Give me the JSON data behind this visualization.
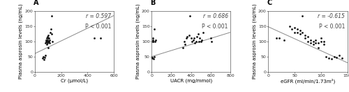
{
  "panel_A": {
    "label": "A",
    "x_data": [
      60,
      65,
      70,
      75,
      80,
      80,
      85,
      85,
      90,
      90,
      90,
      95,
      95,
      95,
      100,
      100,
      100,
      100,
      105,
      105,
      110,
      110,
      115,
      120,
      125,
      130,
      135,
      450,
      500
    ],
    "y_data": [
      45,
      50,
      40,
      48,
      55,
      95,
      100,
      105,
      90,
      100,
      110,
      95,
      105,
      115,
      80,
      100,
      110,
      120,
      100,
      110,
      95,
      105,
      130,
      140,
      125,
      185,
      100,
      110,
      110
    ],
    "xlabel": "Cr (μmol/L)",
    "ylabel": "Plasma asprosin levels (ng/mL)",
    "xlim": [
      0,
      600
    ],
    "ylim": [
      0,
      200
    ],
    "xticks": [
      0,
      200,
      400,
      600
    ],
    "yticks": [
      0,
      50,
      100,
      150,
      200
    ],
    "r_text": "r = 0.597",
    "p_text": "P < 0.001",
    "line_x": [
      0,
      600
    ],
    "line_y": [
      60,
      185
    ]
  },
  "panel_B": {
    "label": "B",
    "x_data": [
      5,
      8,
      10,
      12,
      15,
      15,
      20,
      25,
      30,
      35,
      40,
      320,
      330,
      340,
      350,
      360,
      380,
      390,
      400,
      410,
      420,
      430,
      440,
      450,
      460,
      470,
      480,
      490,
      500,
      510,
      520,
      600,
      610
    ],
    "y_data": [
      45,
      48,
      100,
      100,
      105,
      110,
      42,
      140,
      50,
      100,
      105,
      80,
      100,
      90,
      110,
      115,
      120,
      185,
      110,
      100,
      105,
      110,
      95,
      100,
      115,
      125,
      100,
      110,
      100,
      105,
      130,
      110,
      100
    ],
    "xlabel": "UACR (mg/mmol)",
    "ylabel": "Plasma asprosin levels (ng/mL)",
    "xlim": [
      0,
      800
    ],
    "ylim": [
      0,
      200
    ],
    "xticks": [
      0,
      200,
      400,
      600,
      800
    ],
    "yticks": [
      0,
      50,
      100,
      150,
      200
    ],
    "r_text": "r = 0.686",
    "p_text": "P < 0.001",
    "line_x": [
      0,
      800
    ],
    "line_y": [
      50,
      130
    ]
  },
  "panel_C": {
    "label": "C",
    "x_data": [
      15,
      20,
      30,
      40,
      45,
      50,
      50,
      55,
      55,
      60,
      60,
      65,
      65,
      70,
      70,
      75,
      75,
      80,
      80,
      85,
      85,
      90,
      90,
      95,
      95,
      100,
      100,
      105,
      105,
      110,
      115,
      120,
      125,
      130,
      135,
      140
    ],
    "y_data": [
      110,
      110,
      105,
      150,
      140,
      130,
      145,
      130,
      140,
      125,
      135,
      185,
      130,
      120,
      110,
      100,
      115,
      95,
      105,
      90,
      100,
      95,
      105,
      80,
      95,
      100,
      110,
      90,
      100,
      50,
      45,
      42,
      50,
      48,
      55,
      45
    ],
    "xlabel": "eGFR (ml/min/1.73m²)",
    "ylabel": "Plasma asprosin levels (ng/mL)",
    "xlim": [
      0,
      150
    ],
    "ylim": [
      0,
      200
    ],
    "xticks": [
      0,
      50,
      100,
      150
    ],
    "yticks": [
      0,
      50,
      100,
      150,
      200
    ],
    "r_text": "r = -0.615",
    "p_text": "P < 0.001",
    "line_x": [
      0,
      150
    ],
    "line_y": [
      148,
      30
    ]
  },
  "dot_color": "#111111",
  "dot_size": 4,
  "line_color": "#888888",
  "annotation_color": "#444444",
  "background_color": "#ffffff",
  "font_size_annotation": 5.5,
  "font_size_axis_label": 5.0,
  "font_size_tick": 4.5,
  "font_size_panel_label": 7,
  "line_width": 0.7
}
